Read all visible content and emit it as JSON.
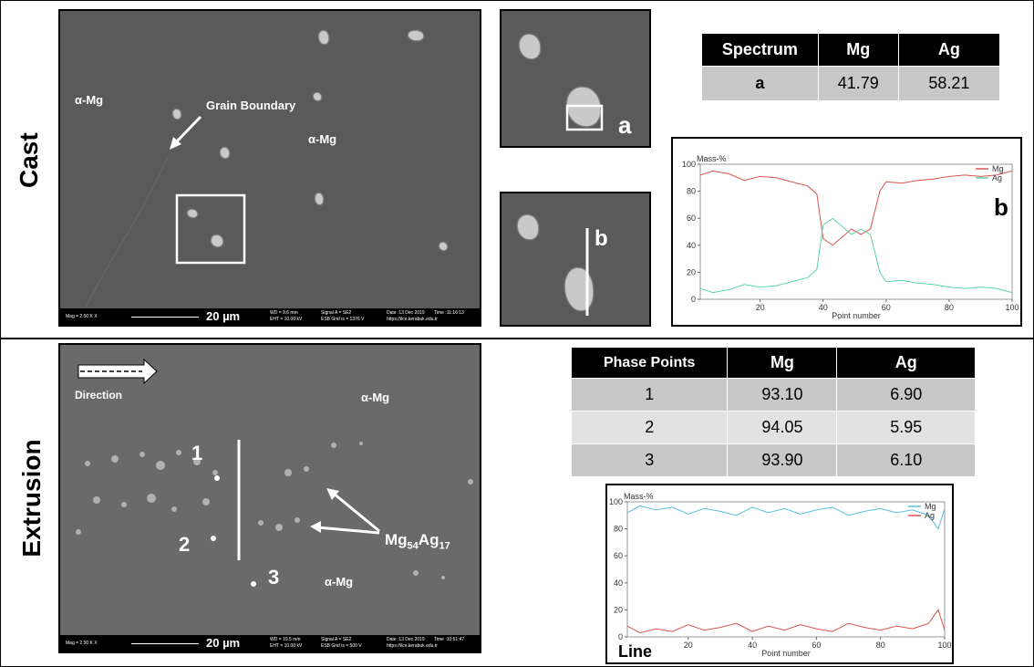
{
  "sections": {
    "cast": "Cast",
    "extrusion": "Extrusion"
  },
  "cast_sem": {
    "labels": {
      "alpha_left": "α-Mg",
      "alpha_center": "α-Mg",
      "grain_boundary": "Grain Boundary"
    },
    "scale": "20 µm",
    "info": {
      "mag": "Mag =  2.50 K X",
      "wd": "WD =  9.6 mm",
      "eht": "EHT = 10.00 kV",
      "signal": "Signal A = SE2",
      "esb": "ESB Grid is =  1376 V",
      "date": "Date :13 Dec 2019",
      "time": "Time :11:16:13",
      "url": "https://ilce.kerabuk.edu.tr"
    }
  },
  "cast_zoom": {
    "label_a": "a",
    "label_b": "b"
  },
  "cast_table": {
    "headers": [
      "Spectrum",
      "Mg",
      "Ag"
    ],
    "rows": [
      [
        "a",
        "41.79",
        "58.21"
      ]
    ]
  },
  "cast_plot": {
    "panel_label": "b"
  },
  "extrusion_sem": {
    "direction": "Direction",
    "alpha_top": "α-Mg",
    "alpha_bottom": "α-Mg",
    "point1": "1",
    "point2": "2",
    "point3": "3",
    "phase_prefix": "Mg",
    "phase_sub1": "54",
    "phase_mid": "Ag",
    "phase_sub2": "17",
    "scale": "20 µm",
    "info": {
      "mag": "Mag =  2.50 K X",
      "wd": "WD = 10.5 mm",
      "eht": "EHT = 10.00 kV",
      "signal": "Signal A = SE2",
      "esb": "ESB Grid is =  500 V",
      "date": "Date :13 Dec 2019",
      "time": "Time :10:51:47",
      "url": "https://ilce.kerabuk.edu.tr"
    }
  },
  "extrusion_table": {
    "headers": [
      "Phase Points",
      "Mg",
      "Ag"
    ],
    "rows": [
      [
        "1",
        "93.10",
        "6.90"
      ],
      [
        "2",
        "94.05",
        "5.95"
      ],
      [
        "3",
        "93.90",
        "6.10"
      ]
    ]
  },
  "extrusion_plot": {
    "panel_label": "Line"
  },
  "chart_data": [
    {
      "type": "line",
      "ylabel": "Mass-%",
      "xlabel": "Point number",
      "xlim": [
        1,
        100
      ],
      "ylim": [
        0,
        100
      ],
      "xticks": [
        "20",
        "40",
        "60",
        "80",
        "100"
      ],
      "yticks": [
        "0",
        "20",
        "40",
        "60",
        "80",
        "100"
      ],
      "legend_position": "top-right",
      "series": [
        {
          "name": "Mg",
          "color": "#d9534f",
          "x": [
            1,
            5,
            10,
            15,
            20,
            25,
            30,
            35,
            38,
            40,
            43,
            46,
            49,
            52,
            55,
            58,
            60,
            65,
            70,
            75,
            80,
            85,
            90,
            95,
            100
          ],
          "values": [
            92,
            95,
            93,
            88,
            91,
            90,
            87,
            84,
            78,
            45,
            40,
            46,
            52,
            48,
            52,
            80,
            87,
            86,
            88,
            89,
            91,
            92,
            91,
            92,
            95
          ]
        },
        {
          "name": "Ag",
          "color": "#5cd6a0",
          "x": [
            1,
            5,
            10,
            15,
            20,
            25,
            30,
            35,
            38,
            40,
            43,
            46,
            49,
            52,
            55,
            58,
            60,
            65,
            70,
            75,
            80,
            85,
            90,
            95,
            100
          ],
          "values": [
            8,
            5,
            7,
            11,
            9,
            10,
            13,
            16,
            22,
            55,
            60,
            54,
            48,
            52,
            48,
            20,
            13,
            14,
            12,
            11,
            9,
            8,
            9,
            8,
            5
          ]
        }
      ]
    },
    {
      "type": "line",
      "ylabel": "Mass-%",
      "xlabel": "Point number",
      "xlim": [
        1,
        100
      ],
      "ylim": [
        0,
        100
      ],
      "xticks": [
        "20",
        "40",
        "60",
        "80",
        "100"
      ],
      "yticks": [
        "0",
        "20",
        "40",
        "60",
        "80",
        "100"
      ],
      "legend_position": "top-right",
      "series": [
        {
          "name": "Mg",
          "color": "#5bc0de",
          "x": [
            1,
            5,
            10,
            15,
            20,
            25,
            30,
            35,
            40,
            45,
            50,
            55,
            60,
            65,
            70,
            75,
            80,
            85,
            90,
            95,
            98,
            100
          ],
          "values": [
            92,
            97,
            94,
            96,
            91,
            95,
            93,
            90,
            96,
            92,
            95,
            91,
            94,
            96,
            90,
            93,
            95,
            92,
            94,
            90,
            80,
            95
          ]
        },
        {
          "name": "Ag",
          "color": "#d9534f",
          "x": [
            1,
            5,
            10,
            15,
            20,
            25,
            30,
            35,
            40,
            45,
            50,
            55,
            60,
            65,
            70,
            75,
            80,
            85,
            90,
            95,
            98,
            100
          ],
          "values": [
            8,
            3,
            6,
            4,
            9,
            5,
            7,
            10,
            4,
            8,
            5,
            9,
            6,
            4,
            10,
            7,
            5,
            8,
            6,
            10,
            20,
            5
          ]
        }
      ]
    }
  ]
}
